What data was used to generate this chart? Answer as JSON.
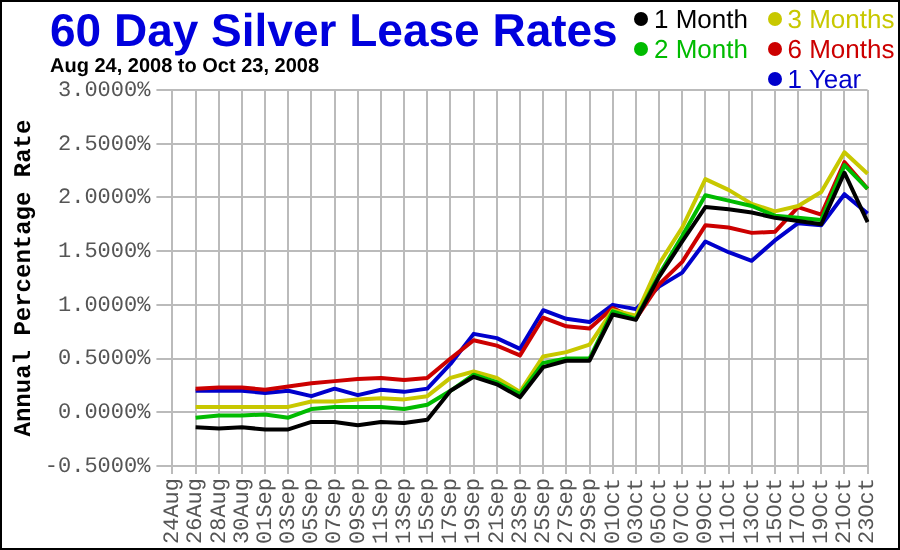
{
  "chart_data": {
    "type": "line",
    "title": "60 Day Silver Lease Rates",
    "subtitle": "Aug 24, 2008 to Oct 23, 2008",
    "ylabel": "Annual Percentage Rate",
    "categories": [
      "24Aug",
      "26Aug",
      "28Aug",
      "30Aug",
      "01Sep",
      "03Sep",
      "05Sep",
      "07Sep",
      "09Sep",
      "11Sep",
      "13Sep",
      "15Sep",
      "17Sep",
      "19Sep",
      "21Sep",
      "23Sep",
      "25Sep",
      "27Sep",
      "29Sep",
      "01Oct",
      "03Oct",
      "05Oct",
      "07Oct",
      "09Oct",
      "11Oct",
      "13Oct",
      "15Oct",
      "17Oct",
      "19Oct",
      "21Oct",
      "23Oct"
    ],
    "series": [
      {
        "name": "1 Month",
        "color": "#000000",
        "values": [
          null,
          -0.14,
          -0.15,
          -0.14,
          -0.16,
          -0.16,
          -0.09,
          -0.09,
          -0.12,
          -0.09,
          -0.1,
          -0.07,
          0.2,
          0.33,
          0.26,
          0.14,
          0.42,
          0.48,
          0.48,
          0.91,
          0.86,
          1.26,
          1.59,
          1.91,
          1.89,
          1.86,
          1.81,
          1.78,
          1.75,
          2.23,
          1.77
        ]
      },
      {
        "name": "2 Month",
        "color": "#00bb00",
        "values": [
          null,
          -0.05,
          -0.03,
          -0.03,
          -0.02,
          -0.05,
          0.03,
          0.05,
          0.05,
          0.05,
          0.03,
          0.07,
          0.2,
          0.35,
          0.28,
          0.17,
          0.46,
          0.5,
          0.5,
          0.94,
          0.87,
          1.28,
          1.64,
          2.02,
          1.97,
          1.92,
          1.83,
          1.81,
          1.79,
          2.3,
          2.08
        ]
      },
      {
        "name": "3 Months",
        "color": "#c8c800",
        "values": [
          null,
          0.05,
          0.05,
          0.05,
          0.05,
          0.05,
          0.1,
          0.1,
          0.12,
          0.13,
          0.12,
          0.15,
          0.32,
          0.38,
          0.32,
          0.19,
          0.52,
          0.56,
          0.63,
          0.95,
          0.9,
          1.38,
          1.72,
          2.17,
          2.07,
          1.94,
          1.87,
          1.92,
          2.05,
          2.42,
          2.22
        ]
      },
      {
        "name": "6 Months",
        "color": "#cc0000",
        "values": [
          null,
          0.22,
          0.23,
          0.23,
          0.21,
          0.24,
          0.27,
          0.29,
          0.31,
          0.32,
          0.3,
          0.32,
          0.5,
          0.67,
          0.62,
          0.53,
          0.88,
          0.8,
          0.78,
          0.97,
          0.87,
          1.19,
          1.4,
          1.74,
          1.72,
          1.67,
          1.68,
          1.91,
          1.84,
          2.33,
          2.08
        ]
      },
      {
        "name": "1 Year",
        "color": "#0000cc",
        "values": [
          null,
          0.2,
          0.2,
          0.2,
          0.18,
          0.2,
          0.15,
          0.22,
          0.16,
          0.21,
          0.19,
          0.22,
          0.45,
          0.73,
          0.69,
          0.59,
          0.95,
          0.87,
          0.84,
          1.0,
          0.96,
          1.17,
          1.3,
          1.59,
          1.49,
          1.41,
          1.6,
          1.76,
          1.74,
          2.03,
          1.85
        ]
      }
    ],
    "ylim": [
      -0.5,
      3.0
    ],
    "yticks": [
      {
        "value": -0.5,
        "label": "-0.5000%"
      },
      {
        "value": 0,
        "label": "0.0000%"
      },
      {
        "value": 0.5,
        "label": "0.5000%"
      },
      {
        "value": 1.0,
        "label": "1.0000%"
      },
      {
        "value": 1.5,
        "label": "1.5000%"
      },
      {
        "value": 2.0,
        "label": "2.0000%"
      },
      {
        "value": 2.5,
        "label": "2.5000%"
      },
      {
        "value": 3.0,
        "label": "3.0000%"
      }
    ],
    "grid": true,
    "legend": "top right",
    "marker": "none",
    "line_style": "solid"
  }
}
